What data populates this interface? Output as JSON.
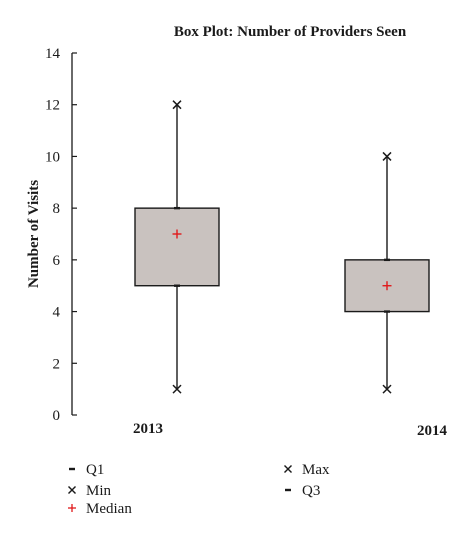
{
  "chart_data": {
    "type": "box",
    "title": "Box Plot: Number of Providers Seen",
    "xlabel": "",
    "ylabel": "Number of Visits",
    "ylim": [
      0,
      14
    ],
    "yticks": [
      0,
      2,
      4,
      6,
      8,
      10,
      12,
      14
    ],
    "categories": [
      "2013",
      "2014"
    ],
    "boxes": [
      {
        "category": "2013",
        "min": 1,
        "q1": 5,
        "median": 7,
        "q3": 8,
        "max": 12
      },
      {
        "category": "2014",
        "min": 1,
        "q1": 4,
        "median": 5,
        "q3": 6,
        "max": 10
      }
    ],
    "grid": false,
    "legend_position": "bottom",
    "legend": [
      {
        "symbol": "dash",
        "label": "Q1"
      },
      {
        "symbol": "x",
        "label": "Max"
      },
      {
        "symbol": "x",
        "label": "Min"
      },
      {
        "symbol": "dash",
        "label": "Q3"
      },
      {
        "symbol": "plus",
        "label": "Median"
      }
    ],
    "colors": {
      "box_fill": "#c9c2bf",
      "box_stroke": "#1a1a1a",
      "median": "#e0191b",
      "text": "#1a1a1a"
    }
  }
}
